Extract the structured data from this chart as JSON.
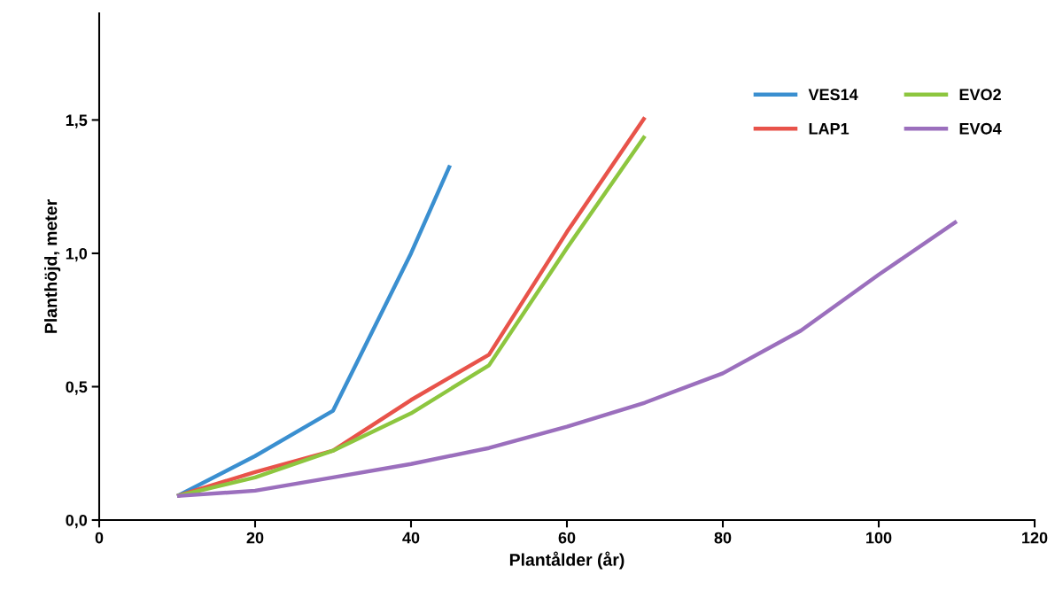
{
  "chart_data": {
    "type": "line",
    "xlabel": "Plantålder (år)",
    "ylabel": "Planthöjd, meter",
    "xlim": [
      0,
      120
    ],
    "xticks": [
      0,
      20,
      40,
      60,
      80,
      100,
      120
    ],
    "ylim": [
      0,
      1.9
    ],
    "yticks": [
      {
        "value": 0,
        "label": "0,0"
      },
      {
        "value": 0.5,
        "label": "0,5"
      },
      {
        "value": 1.0,
        "label": "1,0"
      },
      {
        "value": 1.5,
        "label": "1,5"
      }
    ],
    "grid": false,
    "legend": "top right",
    "marker": "none",
    "line_style": "solid",
    "series": [
      {
        "name": "VES14",
        "color": "#3a8fd0",
        "x": [
          10,
          20,
          30,
          40,
          45
        ],
        "values": [
          0.09,
          0.24,
          0.41,
          1.0,
          1.33
        ]
      },
      {
        "name": "LAP1",
        "color": "#e8534a",
        "x": [
          10,
          20,
          30,
          40,
          50,
          60,
          70
        ],
        "values": [
          0.09,
          0.18,
          0.26,
          0.45,
          0.62,
          1.08,
          1.51
        ]
      },
      {
        "name": "EVO2",
        "color": "#8dc63f",
        "x": [
          10,
          20,
          30,
          40,
          50,
          60,
          70
        ],
        "values": [
          0.09,
          0.16,
          0.26,
          0.4,
          0.58,
          1.02,
          1.44
        ]
      },
      {
        "name": "EVO4",
        "color": "#9b6fbd",
        "x": [
          10,
          20,
          30,
          40,
          50,
          60,
          70,
          80,
          90,
          100,
          110
        ],
        "values": [
          0.09,
          0.11,
          0.16,
          0.21,
          0.27,
          0.35,
          0.44,
          0.55,
          0.71,
          0.92,
          1.12
        ]
      }
    ]
  }
}
